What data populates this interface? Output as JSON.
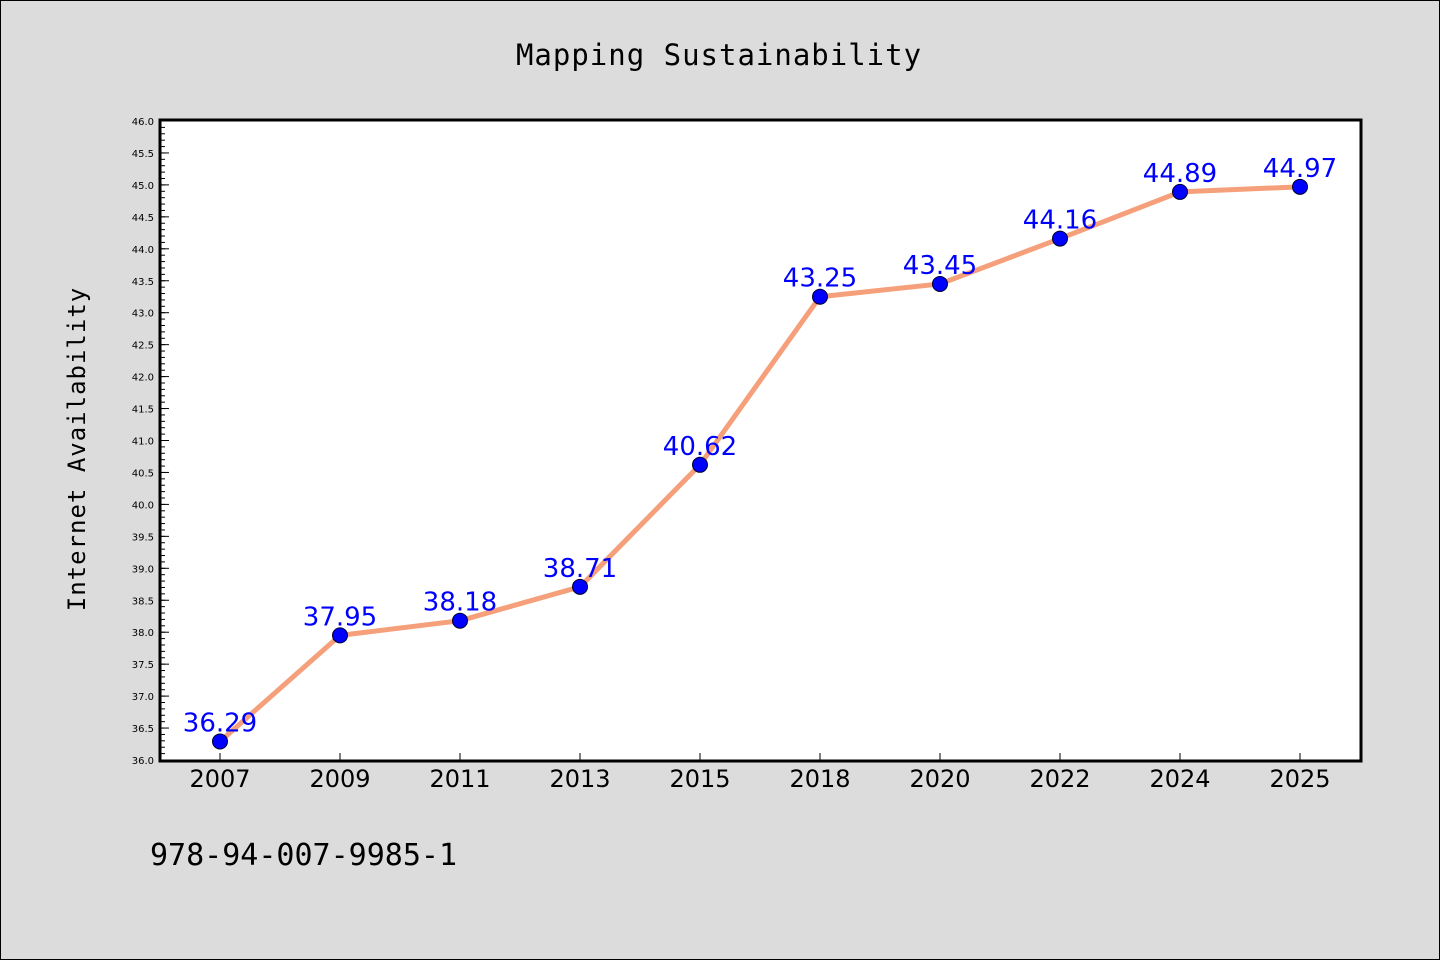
{
  "chart_data": {
    "type": "line",
    "title": "Mapping Sustainability",
    "xlabel": "",
    "ylabel": "Internet Availability",
    "categories": [
      "2007",
      "2009",
      "2011",
      "2013",
      "2015",
      "2018",
      "2020",
      "2022",
      "2024",
      "2025"
    ],
    "series": [
      {
        "values": [
          36.29,
          37.95,
          38.18,
          38.71,
          40.62,
          43.25,
          43.45,
          44.16,
          44.89,
          44.97
        ],
        "line_color": "#f5a07a",
        "marker_color": "#0000ff",
        "label_color": "#0000ff"
      }
    ],
    "data_labels": [
      "36.29",
      "37.95",
      "38.18",
      "38.71",
      "40.62",
      "43.25",
      "43.45",
      "44.16",
      "44.89",
      "44.97"
    ],
    "ylim": [
      36.0,
      46.0
    ],
    "y_ticks": [
      "36.0",
      "36.5",
      "37.0",
      "37.5",
      "38.0",
      "38.5",
      "39.0",
      "39.5",
      "40.0",
      "40.5",
      "41.0",
      "41.5",
      "42.0",
      "42.5",
      "43.0",
      "43.5",
      "44.0",
      "44.5",
      "45.0",
      "45.5",
      "46.0"
    ],
    "grid": false,
    "legend": "none"
  },
  "footer": {
    "isbn": "978-94-007-9985-1"
  },
  "colors": {
    "background": "#dcdcdc",
    "plot_background": "#ffffff"
  }
}
